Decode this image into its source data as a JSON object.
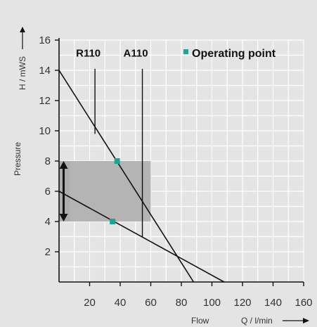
{
  "chart_data": {
    "type": "line",
    "title": "",
    "xlabel": "Flow",
    "xunit": "Q / l/min",
    "ylabel": "Pressure",
    "yunit": "H / mWS",
    "xlim": [
      0,
      160
    ],
    "ylim": [
      0,
      16
    ],
    "x_ticks": [
      20,
      40,
      60,
      80,
      100,
      120,
      140,
      160
    ],
    "y_ticks": [
      2,
      4,
      6,
      8,
      10,
      12,
      14,
      16
    ],
    "grid": true,
    "legend": [
      {
        "label": "Operating point",
        "color": "#1aa49a",
        "marker": "square",
        "position": "top-right"
      }
    ],
    "series": [
      {
        "points": [
          [
            0,
            14
          ],
          [
            88,
            0
          ]
        ]
      },
      {
        "points": [
          [
            0,
            6
          ],
          [
            108,
            0
          ]
        ]
      }
    ],
    "operating_points": [
      [
        38,
        8
      ],
      [
        35,
        4
      ]
    ],
    "markers": [
      {
        "label": "R110",
        "x": 23.5
      },
      {
        "label": "A110",
        "x": 54.5
      }
    ],
    "shaded_region": {
      "x": [
        0,
        60
      ],
      "y": [
        4,
        8
      ]
    },
    "double_arrow": {
      "x": 3,
      "y": [
        4,
        8
      ]
    },
    "colors": {
      "background": "#e4e4e4",
      "grid": "#ffffff",
      "line": "#111111",
      "shade": "#a5a5a5",
      "point": "#1aa49a"
    }
  }
}
